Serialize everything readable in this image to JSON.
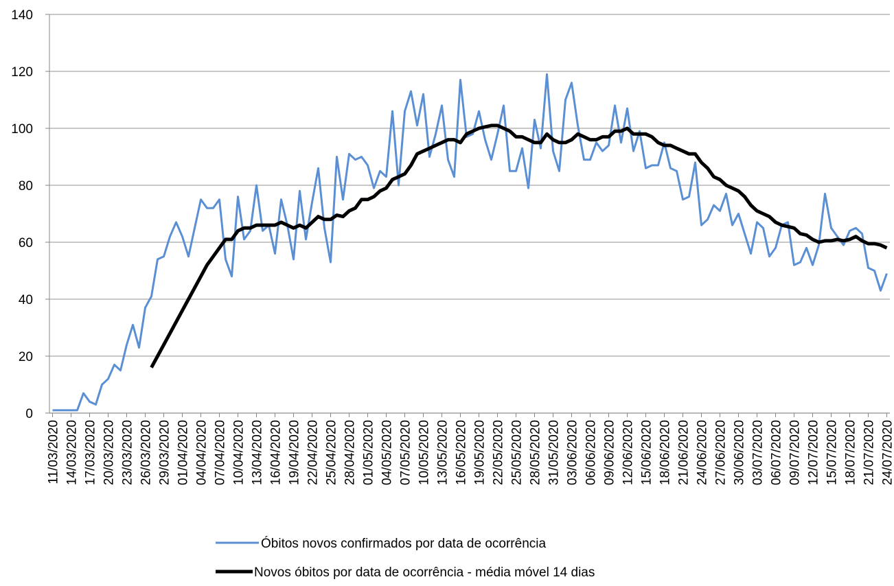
{
  "chart_data": {
    "type": "line",
    "categories": [
      "11/03/2020",
      null,
      null,
      "14/03/2020",
      null,
      null,
      "17/03/2020",
      null,
      null,
      "20/03/2020",
      null,
      null,
      "23/03/2020",
      null,
      null,
      "26/03/2020",
      null,
      null,
      "29/03/2020",
      null,
      null,
      "01/04/2020",
      null,
      null,
      "04/04/2020",
      null,
      null,
      "07/04/2020",
      null,
      null,
      "10/04/2020",
      null,
      null,
      "13/04/2020",
      null,
      null,
      "16/04/2020",
      null,
      null,
      "19/04/2020",
      null,
      null,
      "22/04/2020",
      null,
      null,
      "25/04/2020",
      null,
      null,
      "28/04/2020",
      null,
      null,
      "01/05/2020",
      null,
      null,
      "04/05/2020",
      null,
      null,
      "07/05/2020",
      null,
      null,
      "10/05/2020",
      null,
      null,
      "13/05/2020",
      null,
      null,
      "16/05/2020",
      null,
      null,
      "19/05/2020",
      null,
      null,
      "22/05/2020",
      null,
      null,
      "25/05/2020",
      null,
      null,
      "28/05/2020",
      null,
      null,
      "31/05/2020",
      null,
      null,
      "03/06/2020",
      null,
      null,
      "06/06/2020",
      null,
      null,
      "09/06/2020",
      null,
      null,
      "12/06/2020",
      null,
      null,
      "15/06/2020",
      null,
      null,
      "18/06/2020",
      null,
      null,
      "21/06/2020",
      null,
      null,
      "24/06/2020",
      null,
      null,
      "27/06/2020",
      null,
      null,
      "30/06/2020",
      null,
      null,
      "03/07/2020",
      null,
      null,
      "06/07/2020",
      null,
      null,
      "09/07/2020",
      null,
      null,
      "12/07/2020",
      null,
      null,
      "15/07/2020",
      null,
      null,
      "18/07/2020",
      null,
      null,
      "21/07/2020",
      null,
      null,
      "24/07/2020"
    ],
    "series": [
      {
        "name": "Óbitos novos confirmados por data de ocorrência",
        "color": "#5b8fd4",
        "values": [
          1,
          1,
          1,
          1,
          1,
          7,
          4,
          3,
          10,
          12,
          17,
          15,
          24,
          31,
          23,
          37,
          41,
          54,
          55,
          62,
          67,
          62,
          55,
          65,
          75,
          72,
          72,
          75,
          54,
          48,
          76,
          61,
          64,
          80,
          64,
          66,
          56,
          75,
          66,
          54,
          78,
          61,
          74,
          86,
          65,
          53,
          90,
          75,
          91,
          89,
          90,
          87,
          79,
          85,
          83,
          106,
          80,
          106,
          113,
          101,
          112,
          90,
          98,
          108,
          89,
          83,
          117,
          97,
          98,
          106,
          96,
          89,
          98,
          108,
          85,
          85,
          93,
          79,
          103,
          93,
          119,
          92,
          85,
          110,
          116,
          101,
          89,
          89,
          95,
          92,
          94,
          108,
          95,
          107,
          92,
          99,
          86,
          87,
          87,
          95,
          86,
          85,
          75,
          76,
          88,
          66,
          68,
          73,
          71,
          77,
          66,
          70,
          63,
          56,
          67,
          65,
          55,
          58,
          66,
          67,
          52,
          53,
          58,
          52,
          59,
          77,
          65,
          62,
          59,
          64,
          65,
          63,
          51,
          50,
          43,
          49
        ]
      },
      {
        "name": "Novos óbitos por data de ocorrência - média móvel 14 dias",
        "color": "#000000",
        "values": [
          null,
          null,
          null,
          null,
          null,
          null,
          null,
          null,
          null,
          null,
          null,
          null,
          null,
          null,
          null,
          null,
          16,
          20,
          24,
          28,
          32,
          36,
          40,
          44,
          48,
          52,
          55,
          58,
          61,
          61,
          64,
          65,
          65,
          66,
          66,
          66,
          66,
          67,
          66,
          65,
          66,
          65,
          67,
          69,
          68,
          68,
          69.5,
          69,
          71,
          72,
          75,
          75,
          76,
          78,
          79,
          82,
          83,
          84,
          87,
          91,
          92,
          93,
          94,
          95,
          96,
          96,
          95,
          98,
          99,
          100,
          100.5,
          101,
          101,
          100,
          99,
          97,
          97,
          96,
          95,
          95,
          98,
          96,
          95,
          95,
          96,
          98,
          97,
          96,
          96,
          97,
          97,
          99,
          99,
          100,
          98,
          98,
          98,
          97,
          95,
          94,
          94,
          93,
          92,
          91,
          91,
          88,
          86,
          83,
          82,
          80,
          79,
          78,
          76,
          73,
          71,
          70,
          69,
          67,
          66,
          65.5,
          65,
          63,
          62.5,
          61,
          60,
          60.5,
          60.5,
          61,
          60.5,
          61,
          62,
          60.5,
          59.5,
          59.5,
          59,
          58
        ]
      }
    ],
    "ylim": [
      0,
      140
    ],
    "yticks": [
      0,
      20,
      40,
      60,
      80,
      100,
      120,
      140
    ],
    "grid": true
  }
}
